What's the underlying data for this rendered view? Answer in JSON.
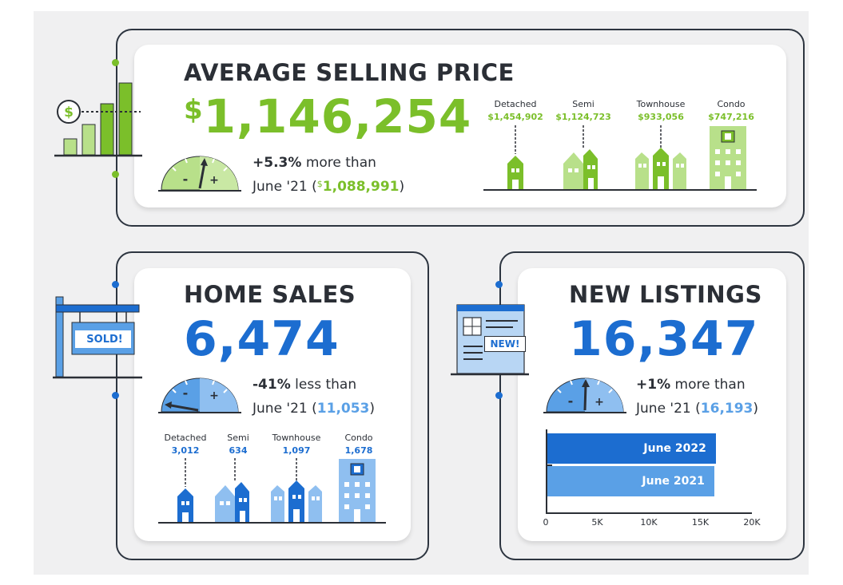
{
  "colors": {
    "green": "#7bbf2a",
    "green_light": "#b8e08a",
    "blue": "#1c6dd0",
    "blue_light": "#5aa0e6",
    "dark": "#2b2f36"
  },
  "average_price": {
    "title": "AVERAGE SELLING PRICE",
    "currency": "$",
    "value": "1,146,254",
    "change": "+5.3%",
    "change_text": "more than",
    "compare_prefix": "June '21 (",
    "compare_currency": "$",
    "compare_value": "1,088,991",
    "compare_suffix": ")",
    "icon": "bar-chart-dollar-icon",
    "types": [
      {
        "label": "Detached",
        "value": "$1,454,902"
      },
      {
        "label": "Semi",
        "value": "$1,124,723"
      },
      {
        "label": "Townhouse",
        "value": "$933,056"
      },
      {
        "label": "Condo",
        "value": "$747,216"
      }
    ]
  },
  "home_sales": {
    "title": "HOME SALES",
    "value": "6,474",
    "change": "-41%",
    "change_text": "less than",
    "compare_prefix": "June '21 (",
    "compare_value": "11,053",
    "compare_suffix": ")",
    "icon": "sold-sign-icon",
    "sign_text": "SOLD!",
    "types": [
      {
        "label": "Detached",
        "value": "3,012"
      },
      {
        "label": "Semi",
        "value": "634"
      },
      {
        "label": "Townhouse",
        "value": "1,097"
      },
      {
        "label": "Condo",
        "value": "1,678"
      }
    ]
  },
  "new_listings": {
    "title": "NEW LISTINGS",
    "value": "16,347",
    "change": "+1%",
    "change_text": "more than",
    "compare_prefix": "June '21 (",
    "compare_value": "16,193",
    "compare_suffix": ")",
    "icon": "new-listing-document-icon",
    "sign_text": "NEW!",
    "chart_data": {
      "type": "bar",
      "orientation": "horizontal",
      "categories": [
        "June 2022",
        "June 2021"
      ],
      "values": [
        16347,
        16193
      ],
      "xlim": [
        0,
        20000
      ],
      "ticks": [
        0,
        5000,
        10000,
        15000,
        20000
      ],
      "tick_labels": [
        "0",
        "5K",
        "10K",
        "15K",
        "20K"
      ],
      "colors": [
        "#1c6dd0",
        "#5aa0e6"
      ]
    }
  }
}
